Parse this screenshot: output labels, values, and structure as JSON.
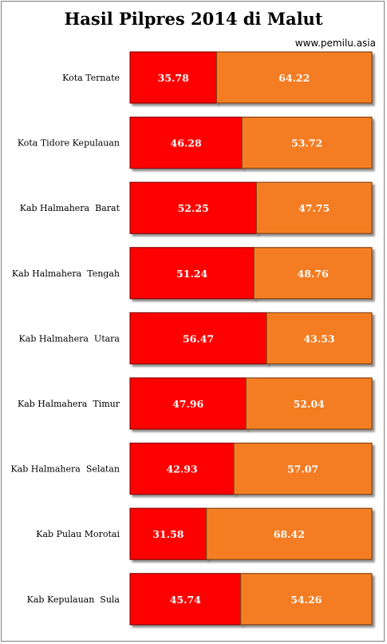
{
  "chart_data": {
    "type": "bar",
    "orientation": "horizontal",
    "stacked": true,
    "title": "Hasil Pilpres 2014 di Malut",
    "source": "www.pemilu.asia",
    "categories": [
      "Kota Ternate",
      "Kota Tidore Kepulauan",
      "Kab Halmahera  Barat",
      "Kab Halmahera  Tengah",
      "Kab Halmahera  Utara",
      "Kab Halmahera  Timur",
      "Kab Halmahera  Selatan",
      "Kab Pulau Morotai",
      "Kab Kepulauan  Sula"
    ],
    "series": [
      {
        "values": [
          35.78,
          46.28,
          52.25,
          51.24,
          56.47,
          47.96,
          42.93,
          31.58,
          45.74
        ],
        "color": "#ff0000"
      },
      {
        "values": [
          64.22,
          53.72,
          47.75,
          48.76,
          43.53,
          52.04,
          57.07,
          68.42,
          54.26
        ],
        "color": "#f47b20"
      }
    ],
    "xlim": [
      0,
      100
    ],
    "grid": false,
    "legend": "none"
  }
}
